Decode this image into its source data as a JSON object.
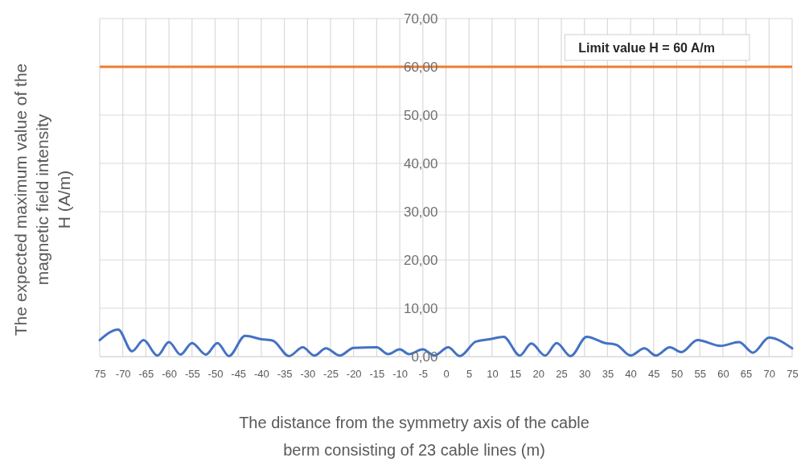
{
  "chart_data": {
    "type": "line",
    "xlabel": "The distance from the symmetry axis of the cable\nberm consisting of 23 cable lines (m)",
    "ylabel": "The expected maximum value of the\nmagnetic field intensity\nH (A/m)",
    "x": [
      -75,
      -71,
      -68,
      -65.5,
      -62.5,
      -60,
      -57.5,
      -55,
      -52,
      -49.5,
      -47,
      -43.5,
      -40,
      -37.5,
      -34,
      -31,
      -28.5,
      -26,
      -23,
      -20,
      -15,
      -12.5,
      -10,
      -8,
      -5,
      -2.5,
      0.5,
      3,
      6.5,
      9.5,
      12.5,
      16,
      18.5,
      21.5,
      24,
      27,
      30.5,
      34.5,
      37,
      40,
      43,
      45.5,
      48.5,
      51,
      54.5,
      59.5,
      63.5,
      66.5,
      70,
      75
    ],
    "values": [
      3.4,
      5.6,
      1.1,
      3.4,
      0.2,
      3.0,
      0.4,
      2.8,
      0.4,
      2.8,
      0.1,
      4.3,
      3.6,
      3.3,
      0.1,
      1.9,
      0.2,
      1.7,
      0.2,
      1.8,
      1.9,
      0.5,
      1.5,
      0.5,
      1.5,
      0.2,
      1.9,
      0.1,
      3.1,
      3.6,
      4.1,
      0.2,
      2.7,
      0.2,
      2.8,
      0.1,
      4.1,
      2.8,
      2.4,
      0.2,
      1.7,
      0.2,
      1.9,
      0.9,
      3.4,
      2.2,
      3.0,
      0.8,
      3.9,
      1.7
    ],
    "color": "#4472c4",
    "xlim": [
      -75,
      75
    ],
    "xticks": [
      {
        "value": -75,
        "label": "75"
      },
      -70,
      -65,
      -60,
      -55,
      -50,
      -45,
      -40,
      -35,
      -30,
      -25,
      -20,
      -15,
      -10,
      -5,
      0,
      5,
      10,
      15,
      20,
      25,
      30,
      35,
      40,
      45,
      50,
      55,
      60,
      65,
      70,
      75
    ],
    "ylim": [
      0,
      70
    ],
    "yticks": [
      {
        "value": 0,
        "label": "0,00"
      },
      {
        "value": 10,
        "label": "10,00"
      },
      {
        "value": 20,
        "label": "20,00"
      },
      {
        "value": 30,
        "label": "30,00"
      },
      {
        "value": 40,
        "label": "40,00"
      },
      {
        "value": 50,
        "label": "50,00"
      },
      {
        "value": 60,
        "label": "60,00"
      },
      {
        "value": 70,
        "label": "70,00"
      }
    ],
    "grid": true,
    "ref_lines": [
      {
        "axis": "y",
        "value": 60,
        "label": "Limit value H = 60 A/m",
        "color": "#ed7d31"
      }
    ]
  }
}
